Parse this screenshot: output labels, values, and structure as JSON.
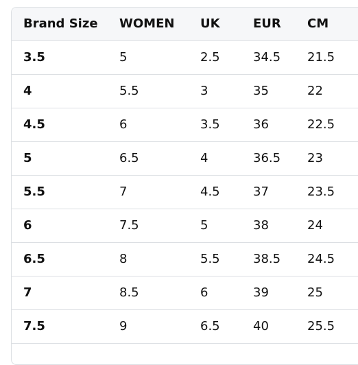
{
  "size_chart": {
    "headers": [
      "Brand Size",
      "WOMEN",
      "UK",
      "EUR",
      "CM"
    ],
    "rows": [
      [
        "3.5",
        "5",
        "2.5",
        "34.5",
        "21.5"
      ],
      [
        "4",
        "5.5",
        "3",
        "35",
        "22"
      ],
      [
        "4.5",
        "6",
        "3.5",
        "36",
        "22.5"
      ],
      [
        "5",
        "6.5",
        "4",
        "36.5",
        "23"
      ],
      [
        "5.5",
        "7",
        "4.5",
        "37",
        "23.5"
      ],
      [
        "6",
        "7.5",
        "5",
        "38",
        "24"
      ],
      [
        "6.5",
        "8",
        "5.5",
        "38.5",
        "24.5"
      ],
      [
        "7",
        "8.5",
        "6",
        "39",
        "25"
      ],
      [
        "7.5",
        "9",
        "6.5",
        "40",
        "25.5"
      ],
      [
        "",
        "",
        "",
        "",
        ""
      ]
    ]
  },
  "colors": {
    "header_bg": "#f6f7f9",
    "border": "#dcdfe3",
    "text": "#111111"
  }
}
